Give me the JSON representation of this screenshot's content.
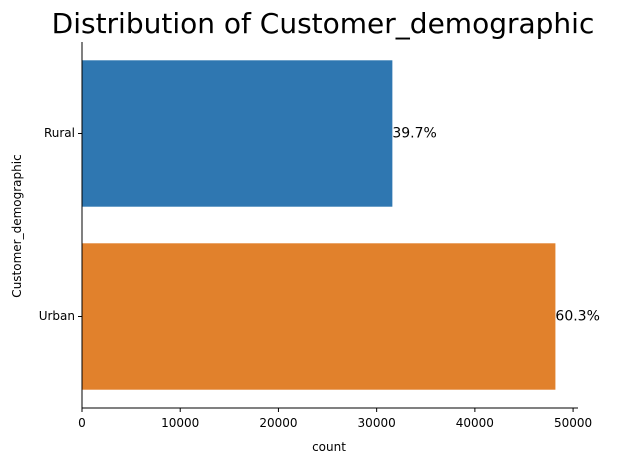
{
  "chart_data": {
    "type": "bar",
    "orientation": "horizontal",
    "title": "Distribution of Customer_demographic",
    "xlabel": "count",
    "ylabel": "Customer_demographic",
    "categories": [
      "Rural",
      "Urban"
    ],
    "values": [
      31600,
      48200
    ],
    "data_labels": [
      "39.7%",
      "60.3%"
    ],
    "xlim": [
      0,
      50500
    ],
    "xticks": [
      0,
      10000,
      20000,
      30000,
      40000,
      50000
    ],
    "grid": false,
    "legend": "none",
    "colors": [
      "#2f77b1",
      "#e1812c"
    ]
  }
}
